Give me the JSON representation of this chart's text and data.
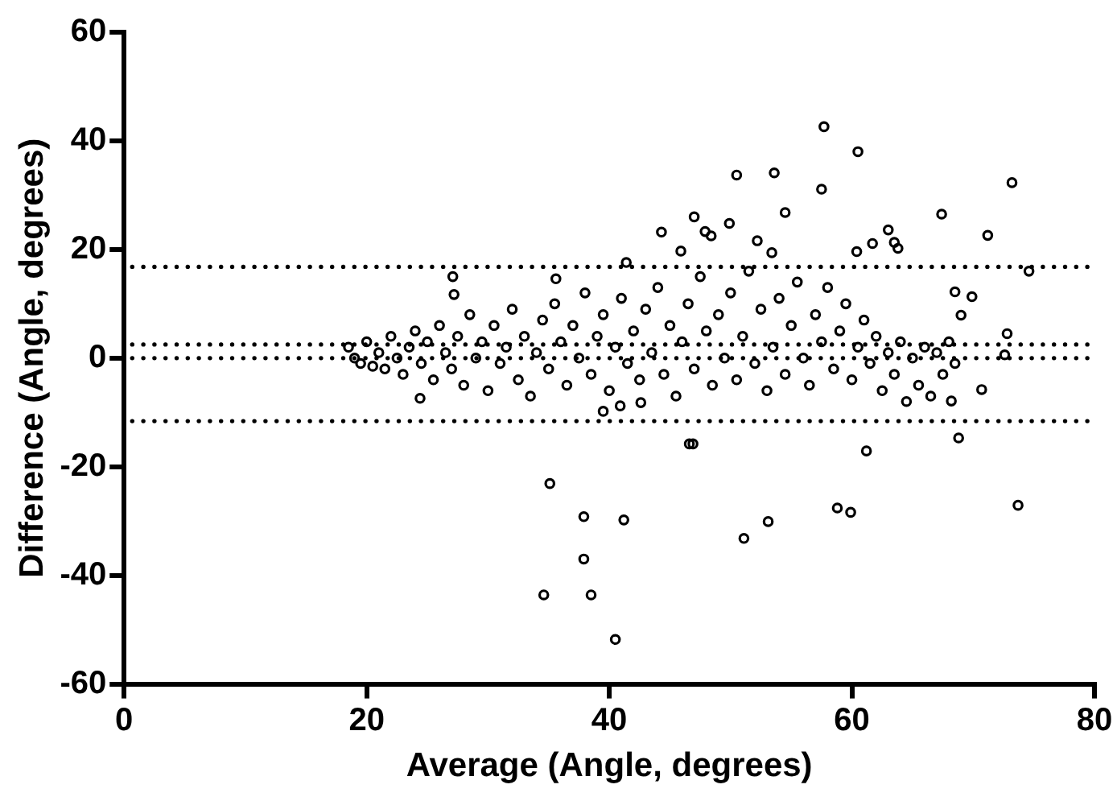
{
  "chart_data": {
    "type": "scatter",
    "xlabel": "Average (Angle, degrees)",
    "ylabel": "Difference (Angle, degrees)",
    "xlim": [
      0,
      80
    ],
    "xticks": [
      0,
      20,
      40,
      60,
      80
    ],
    "ylim": [
      -60,
      60
    ],
    "yticks": [
      -60,
      -40,
      -20,
      0,
      20,
      40,
      60
    ],
    "grid": false,
    "legend": false,
    "marker": "circle",
    "ref_lines": [
      {
        "axis": "y",
        "value": 16.8,
        "color": "#000000",
        "line_style": "dotted"
      },
      {
        "axis": "y",
        "value": 2.5,
        "color": "#000000",
        "line_style": "dotted"
      },
      {
        "axis": "y",
        "value": 0,
        "color": "#000000",
        "line_style": "dotted"
      },
      {
        "axis": "y",
        "value": -11.6,
        "color": "#000000",
        "line_style": "dotted"
      }
    ],
    "series": [
      {
        "color": "#000000",
        "x": [
          18.5,
          19,
          19.5,
          20,
          20.5,
          21,
          21.5,
          22,
          22.5,
          23,
          23.5,
          24,
          24.5,
          25,
          25.5,
          26,
          26.5,
          27,
          27.5,
          28,
          28.5,
          29,
          29.5,
          30,
          30.5,
          31,
          31.5,
          32,
          32.5,
          33,
          33.5,
          34,
          34.5,
          35,
          35.5,
          36,
          36.5,
          37,
          37.5,
          38,
          38.5,
          39,
          39.5,
          40,
          40.5,
          41,
          41.5,
          42,
          42.5,
          43,
          43.5,
          44,
          44.5,
          45,
          45.5,
          46,
          46.5,
          47,
          47.5,
          48,
          48.5,
          49,
          49.5,
          50,
          50.5,
          51,
          51.5,
          52,
          52.5,
          53,
          53.5,
          54,
          54.5,
          55,
          55.5,
          56,
          56.5,
          57,
          57.5,
          58,
          58.5,
          59,
          59.5,
          60,
          60.5,
          61,
          61.5,
          62,
          62.5,
          63,
          63.5,
          64,
          64.5,
          65,
          65.5,
          66,
          66.5,
          67,
          67.5,
          68,
          68.5,
          57.7,
          60.5,
          50.5,
          53.6,
          57.5,
          73.2,
          54.5,
          44.3,
          47.0,
          47.9,
          48.4,
          49.9,
          67.4,
          71.2,
          45.9,
          52.2,
          53.4,
          63.0,
          63.5,
          63.8,
          61.7,
          60.4,
          74.6,
          68.5,
          69.9,
          69.0,
          72.8,
          72.6,
          27.1,
          27.2,
          35.6,
          41.4,
          70.7,
          68.2,
          24.4,
          39.5,
          40.9,
          42.6,
          61.2,
          68.8,
          46.6,
          46.9,
          35.1,
          37.9,
          41.2,
          37.9,
          34.6,
          38.5,
          40.5,
          51.1,
          53.1,
          58.8,
          59.9,
          73.7
        ],
        "values": [
          2,
          0,
          -1,
          3,
          -1.5,
          1,
          -2,
          4,
          0,
          -3,
          2,
          5,
          -1,
          3,
          -4,
          6,
          1,
          -2,
          4,
          -5,
          8,
          0,
          3,
          -6,
          6,
          -1,
          2,
          9,
          -4,
          4,
          -7,
          1,
          7,
          -2,
          10,
          3,
          -5,
          6,
          0,
          12,
          -3,
          4,
          8,
          -6,
          2,
          11,
          -1,
          5,
          -4,
          9,
          1,
          13,
          -3,
          6,
          -7,
          3,
          10,
          -2,
          15,
          5,
          -5,
          8,
          0,
          12,
          -4,
          4,
          16,
          -1,
          9,
          -6,
          2,
          11,
          -3,
          6,
          14,
          0,
          -5,
          8,
          3,
          13,
          -2,
          5,
          10,
          -4,
          2,
          7,
          -1,
          4,
          -6,
          1,
          -3,
          3,
          -8,
          0,
          -5,
          2,
          -7,
          1,
          -3,
          3,
          -1,
          42.6,
          38.0,
          33.7,
          34.1,
          31.1,
          32.3,
          26.8,
          23.2,
          26.0,
          23.3,
          22.5,
          24.8,
          26.5,
          22.6,
          19.7,
          21.6,
          19.4,
          23.6,
          21.3,
          20.2,
          21.1,
          19.6,
          16.0,
          12.2,
          11.3,
          7.9,
          4.5,
          0.6,
          15.0,
          11.7,
          14.6,
          17.6,
          -5.8,
          -7.9,
          -7.4,
          -9.8,
          -8.8,
          -8.2,
          -17.1,
          -14.7,
          -15.8,
          -15.8,
          -23.1,
          -29.2,
          -29.8,
          -37.0,
          -43.6,
          -43.6,
          -51.8,
          -33.2,
          -30.1,
          -27.6,
          -28.4,
          -27.1
        ]
      }
    ]
  }
}
